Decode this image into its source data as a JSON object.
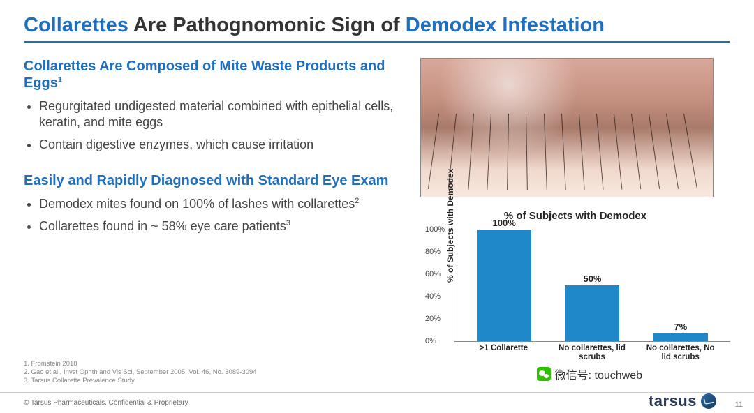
{
  "title": {
    "p1": "Collarettes",
    "p2": " Are Pathognomonic Sign of ",
    "p3": "Demodex Infestation"
  },
  "left": {
    "h1": "Collarettes Are Composed of Mite Waste Products and Eggs",
    "h1_sup": "1",
    "b1": "Regurgitated undigested material combined with epithelial cells, keratin, and mite eggs",
    "b2": "Contain digestive enzymes, which cause irritation",
    "h2": "Easily and Rapidly Diagnosed with Standard Eye Exam",
    "b3a": "Demodex mites found on ",
    "b3u": "100%",
    "b3b": " of lashes with collarettes",
    "b3_sup": "2",
    "b4": "Collarettes found in ~ 58% eye care patients",
    "b4_sup": "3"
  },
  "chart": {
    "type": "bar",
    "title": "% of Subjects with Demodex",
    "ylabel": "% of Subjects with Demodex",
    "ylim": [
      0,
      100
    ],
    "ytick_step": 20,
    "bar_color": "#1e88c8",
    "background": "#ffffff",
    "categories": [
      ">1 Collarette",
      "No collarettes, lid scrubs",
      "No collarettes, No lid scrubs"
    ],
    "values": [
      100,
      50,
      7
    ],
    "value_labels": [
      "100%",
      "50%",
      "7%"
    ],
    "yticks": [
      "0%",
      "20%",
      "40%",
      "60%",
      "80%",
      "100%"
    ]
  },
  "footnotes": {
    "f1": "1. Fromstein 2018",
    "f2": "2. Gao et al., Invst Ophth and Vis Sci, September 2005, Vol. 46, No. 3089-3094",
    "f3": "3. Tarsus Collarette Prevalence Study"
  },
  "footer": {
    "copyright": "© Tarsus Pharmaceuticals. Confidential & Proprietary",
    "logo": "tarsus",
    "page": "11"
  },
  "watermark": "微信号: touchweb",
  "colors": {
    "accent": "#1e6fbf",
    "bar": "#1e88c8",
    "text": "#333333"
  }
}
